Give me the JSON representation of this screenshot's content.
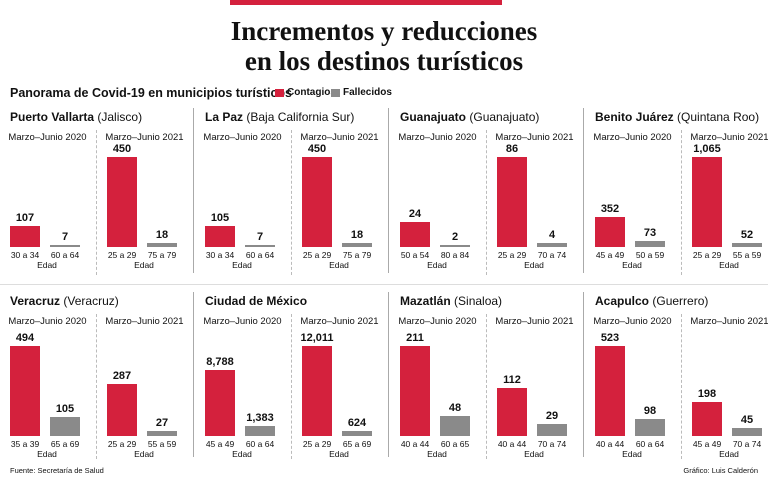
{
  "header": {
    "title_line1": "Incrementos y reducciones",
    "title_line2": "en los destinos turísticos",
    "subtitle": "Panorama de Covid-19 en municipios turísticos"
  },
  "legend": {
    "contagios": "Contagios",
    "fallecidos": "Fallecidos"
  },
  "colors": {
    "contagios": "#d4213d",
    "fallecidos": "#8a8a8a",
    "accent": "#d4213d"
  },
  "axis_label": "Edad",
  "footer": {
    "source": "Fuente: Secretaría de Salud",
    "credit": "Gráfico: Luis Calderón"
  },
  "chart_data": [
    {
      "type": "bar",
      "city": "Puerto Vallarta",
      "state": "(Jalisco)",
      "periods": [
        {
          "label": "Marzo–Junio 2020",
          "contagios": {
            "value": 107,
            "display": "107",
            "age": "30 a 34"
          },
          "fallecidos": {
            "value": 7,
            "display": "7",
            "age": "60 a 64"
          }
        },
        {
          "label": "Marzo–Junio 2021",
          "contagios": {
            "value": 450,
            "display": "450",
            "age": "25 a 29"
          },
          "fallecidos": {
            "value": 18,
            "display": "18",
            "age": "75 a 79"
          }
        }
      ]
    },
    {
      "type": "bar",
      "city": "La Paz",
      "state": "(Baja California Sur)",
      "periods": [
        {
          "label": "Marzo–Junio 2020",
          "contagios": {
            "value": 105,
            "display": "105",
            "age": "30 a 34"
          },
          "fallecidos": {
            "value": 7,
            "display": "7",
            "age": "60 a 64"
          }
        },
        {
          "label": "Marzo–Junio 2021",
          "contagios": {
            "value": 450,
            "display": "450",
            "age": "25 a 29"
          },
          "fallecidos": {
            "value": 18,
            "display": "18",
            "age": "75 a 79"
          }
        }
      ]
    },
    {
      "type": "bar",
      "city": "Guanajuato",
      "state": "(Guanajuato)",
      "periods": [
        {
          "label": "Marzo–Junio 2020",
          "contagios": {
            "value": 24,
            "display": "24",
            "age": "50 a 54"
          },
          "fallecidos": {
            "value": 2,
            "display": "2",
            "age": "80 a 84"
          }
        },
        {
          "label": "Marzo–Junio 2021",
          "contagios": {
            "value": 86,
            "display": "86",
            "age": "25 a 29"
          },
          "fallecidos": {
            "value": 4,
            "display": "4",
            "age": "70 a 74"
          }
        }
      ]
    },
    {
      "type": "bar",
      "city": "Benito Juárez",
      "state": "(Quintana Roo)",
      "periods": [
        {
          "label": "Marzo–Junio 2020",
          "contagios": {
            "value": 352,
            "display": "352",
            "age": "45 a 49"
          },
          "fallecidos": {
            "value": 73,
            "display": "73",
            "age": "50 a 59"
          }
        },
        {
          "label": "Marzo–Junio 2021",
          "contagios": {
            "value": 1065,
            "display": "1,065",
            "age": "25 a 29"
          },
          "fallecidos": {
            "value": 52,
            "display": "52",
            "age": "55 a 59"
          }
        }
      ]
    },
    {
      "type": "bar",
      "city": "Veracruz",
      "state": "(Veracruz)",
      "periods": [
        {
          "label": "Marzo–Junio 2020",
          "contagios": {
            "value": 494,
            "display": "494",
            "age": "35 a 39"
          },
          "fallecidos": {
            "value": 105,
            "display": "105",
            "age": "65 a 69"
          }
        },
        {
          "label": "Marzo–Junio 2021",
          "contagios": {
            "value": 287,
            "display": "287",
            "age": "25 a 29"
          },
          "fallecidos": {
            "value": 27,
            "display": "27",
            "age": "55 a 59"
          }
        }
      ]
    },
    {
      "type": "bar",
      "city": "Ciudad de México",
      "state": "",
      "periods": [
        {
          "label": "Marzo–Junio 2020",
          "contagios": {
            "value": 8788,
            "display": "8,788",
            "age": "45 a 49"
          },
          "fallecidos": {
            "value": 1383,
            "display": "1,383",
            "age": "60 a 64"
          }
        },
        {
          "label": "Marzo–Junio 2021",
          "contagios": {
            "value": 12011,
            "display": "12,011",
            "age": "25 a 29"
          },
          "fallecidos": {
            "value": 624,
            "display": "624",
            "age": "65 a 69"
          }
        }
      ]
    },
    {
      "type": "bar",
      "city": "Mazatlán",
      "state": "(Sinaloa)",
      "periods": [
        {
          "label": "Marzo–Junio 2020",
          "contagios": {
            "value": 211,
            "display": "211",
            "age": "40 a 44"
          },
          "fallecidos": {
            "value": 48,
            "display": "48",
            "age": "60 a 65"
          }
        },
        {
          "label": "Marzo–Junio 2021",
          "contagios": {
            "value": 112,
            "display": "112",
            "age": "40 a 44"
          },
          "fallecidos": {
            "value": 29,
            "display": "29",
            "age": "70 a 74"
          }
        }
      ]
    },
    {
      "type": "bar",
      "city": "Acapulco",
      "state": "(Guerrero)",
      "periods": [
        {
          "label": "Marzo–Junio 2020",
          "contagios": {
            "value": 523,
            "display": "523",
            "age": "40 a 44"
          },
          "fallecidos": {
            "value": 98,
            "display": "98",
            "age": "60 a 64"
          }
        },
        {
          "label": "Marzo–Junio 2021",
          "contagios": {
            "value": 198,
            "display": "198",
            "age": "45 a 49"
          },
          "fallecidos": {
            "value": 45,
            "display": "45",
            "age": "70 a 74"
          }
        }
      ]
    }
  ]
}
